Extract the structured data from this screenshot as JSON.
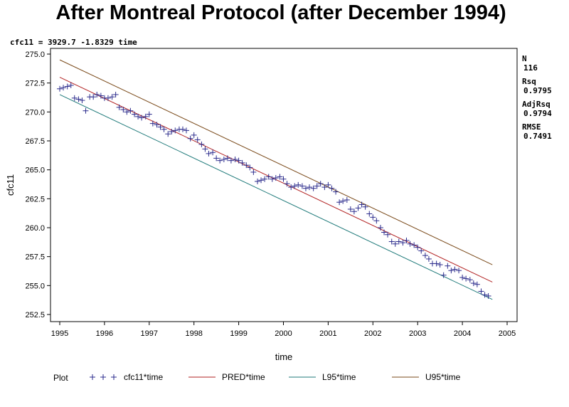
{
  "chart_data": {
    "type": "scatter",
    "title": "After Montreal Protocol (after December 1994)",
    "equation": "cfc11 = 3929.7 -1.8329 time",
    "xlabel": "time",
    "ylabel": "cfc11",
    "xlim": [
      1995,
      2005
    ],
    "ylim": [
      252.5,
      275.0
    ],
    "x_ticks": [
      "1995",
      "1996",
      "1997",
      "1998",
      "1999",
      "2000",
      "2001",
      "2002",
      "2003",
      "2004",
      "2005"
    ],
    "y_ticks": [
      "252.5",
      "255.0",
      "257.5",
      "260.0",
      "262.5",
      "265.0",
      "267.5",
      "270.0",
      "272.5",
      "275.0"
    ],
    "stats": [
      {
        "label": "N",
        "value": "116"
      },
      {
        "label": "Rsq",
        "value": "0.9795"
      },
      {
        "label": "AdjRsq",
        "value": "0.9794"
      },
      {
        "label": "RMSE",
        "value": "0.7491"
      }
    ],
    "legend": {
      "title": "Plot",
      "entries": [
        {
          "label": "cfc11*time",
          "color": "#2b2b8c"
        },
        {
          "label": "PRED*time",
          "color": "#b22222"
        },
        {
          "label": "L95*time",
          "color": "#1f7a7a"
        },
        {
          "label": "U95*time",
          "color": "#7a4a1a"
        }
      ]
    },
    "series": [
      {
        "name": "cfc11*time",
        "color": "#2b2b8c",
        "x": [
          1995.0,
          1995.08,
          1995.17,
          1995.25,
          1995.33,
          1995.42,
          1995.5,
          1995.58,
          1995.67,
          1995.75,
          1995.83,
          1995.92,
          1996.0,
          1996.08,
          1996.17,
          1996.25,
          1996.33,
          1996.42,
          1996.5,
          1996.58,
          1996.67,
          1996.75,
          1996.83,
          1996.92,
          1997.0,
          1997.08,
          1997.17,
          1997.25,
          1997.33,
          1997.42,
          1997.5,
          1997.58,
          1997.67,
          1997.75,
          1997.83,
          1997.92,
          1998.0,
          1998.08,
          1998.17,
          1998.25,
          1998.33,
          1998.42,
          1998.5,
          1998.58,
          1998.67,
          1998.75,
          1998.83,
          1998.92,
          1999.0,
          1999.08,
          1999.17,
          1999.25,
          1999.33,
          1999.42,
          1999.5,
          1999.58,
          1999.67,
          1999.75,
          1999.83,
          1999.92,
          2000.0,
          2000.08,
          2000.17,
          2000.25,
          2000.33,
          2000.42,
          2000.5,
          2000.58,
          2000.67,
          2000.75,
          2000.83,
          2000.92,
          2001.0,
          2001.08,
          2001.17,
          2001.25,
          2001.33,
          2001.42,
          2001.5,
          2001.58,
          2001.67,
          2001.75,
          2001.83,
          2001.92,
          2002.0,
          2002.08,
          2002.17,
          2002.25,
          2002.33,
          2002.42,
          2002.5,
          2002.58,
          2002.67,
          2002.75,
          2002.83,
          2002.92,
          2003.0,
          2003.08,
          2003.17,
          2003.25,
          2003.33,
          2003.42,
          2003.5,
          2003.58,
          2003.67,
          2003.75,
          2003.83,
          2003.92,
          2004.0,
          2004.08,
          2004.17,
          2004.25,
          2004.33,
          2004.42,
          2004.5,
          2004.58
        ],
        "y": [
          272.0,
          272.1,
          272.2,
          272.3,
          271.2,
          271.1,
          271.0,
          270.1,
          271.3,
          271.3,
          271.5,
          271.4,
          271.2,
          271.2,
          271.3,
          271.5,
          270.4,
          270.2,
          270.0,
          270.1,
          269.8,
          269.6,
          269.5,
          269.6,
          269.8,
          269.0,
          268.9,
          268.7,
          268.5,
          268.1,
          268.3,
          268.4,
          268.5,
          268.5,
          268.4,
          267.7,
          268.0,
          267.6,
          267.2,
          266.8,
          266.4,
          266.5,
          266.0,
          265.8,
          265.9,
          266.0,
          265.8,
          265.9,
          265.8,
          265.6,
          265.4,
          265.2,
          264.8,
          264.0,
          264.1,
          264.2,
          264.4,
          264.2,
          264.3,
          264.4,
          264.2,
          263.8,
          263.5,
          263.6,
          263.7,
          263.6,
          263.4,
          263.5,
          263.4,
          263.6,
          263.8,
          263.5,
          263.7,
          263.4,
          263.1,
          262.2,
          262.3,
          262.4,
          261.6,
          261.4,
          261.7,
          262.0,
          261.8,
          261.2,
          260.9,
          260.6,
          260.0,
          259.6,
          259.4,
          258.8,
          258.6,
          258.8,
          258.7,
          258.9,
          258.6,
          258.5,
          258.3,
          258.0,
          257.6,
          257.3,
          256.9,
          256.9,
          256.8,
          255.9,
          256.7,
          256.3,
          256.4,
          256.3,
          255.7,
          255.6,
          255.5,
          255.2,
          255.1,
          254.5,
          254.2,
          254.1
        ]
      },
      {
        "name": "PRED*time",
        "color": "#b22222",
        "x": [
          1995.0,
          2004.67
        ],
        "y": [
          273.0,
          255.3
        ]
      },
      {
        "name": "L95*time",
        "color": "#1f7a7a",
        "x": [
          1995.0,
          2004.67
        ],
        "y": [
          271.5,
          253.8
        ]
      },
      {
        "name": "U95*time",
        "color": "#7a4a1a",
        "x": [
          1995.0,
          2004.67
        ],
        "y": [
          274.5,
          256.8
        ]
      }
    ]
  }
}
